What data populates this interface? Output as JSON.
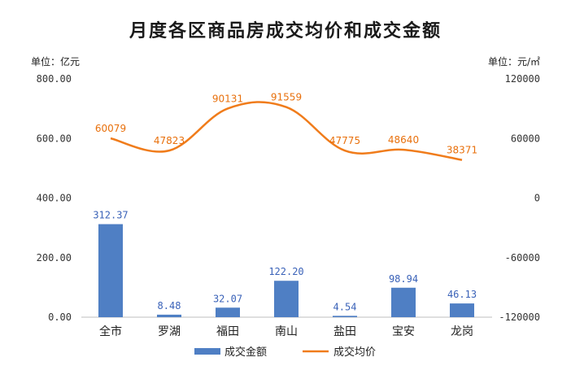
{
  "chart_data": {
    "type": "bar",
    "title": "月度各区商品房成交均价和成交金额",
    "left_unit": "单位：亿元",
    "right_unit": "单位：元/㎡",
    "categories": [
      "全市",
      "罗湖",
      "福田",
      "南山",
      "盐田",
      "宝安",
      "龙岗"
    ],
    "series": [
      {
        "name": "成交金额",
        "type": "bar",
        "axis": "left",
        "values": [
          312.37,
          8.48,
          32.07,
          122.2,
          4.54,
          98.94,
          46.13
        ],
        "labels": [
          "312.37",
          "8.48",
          "32.07",
          "122.20",
          "4.54",
          "98.94",
          "46.13"
        ],
        "color": "#4f7fc4"
      },
      {
        "name": "成交均价",
        "type": "line",
        "axis": "right",
        "values": [
          60079,
          47823,
          90131,
          91559,
          47775,
          48640,
          38371
        ],
        "labels": [
          "60079",
          "47823",
          "90131",
          "91559",
          "47775",
          "48640",
          "38371"
        ],
        "color": "#f07c1b"
      }
    ],
    "left_ylim": [
      0,
      800
    ],
    "left_ticks": [
      "0.00",
      "200.00",
      "400.00",
      "600.00",
      "800.00"
    ],
    "right_ylim": [
      -120000,
      120000
    ],
    "right_ticks": [
      "-120000",
      "-60000",
      "0",
      "60000",
      "120000"
    ],
    "legend_position": "bottom",
    "grid": false
  }
}
